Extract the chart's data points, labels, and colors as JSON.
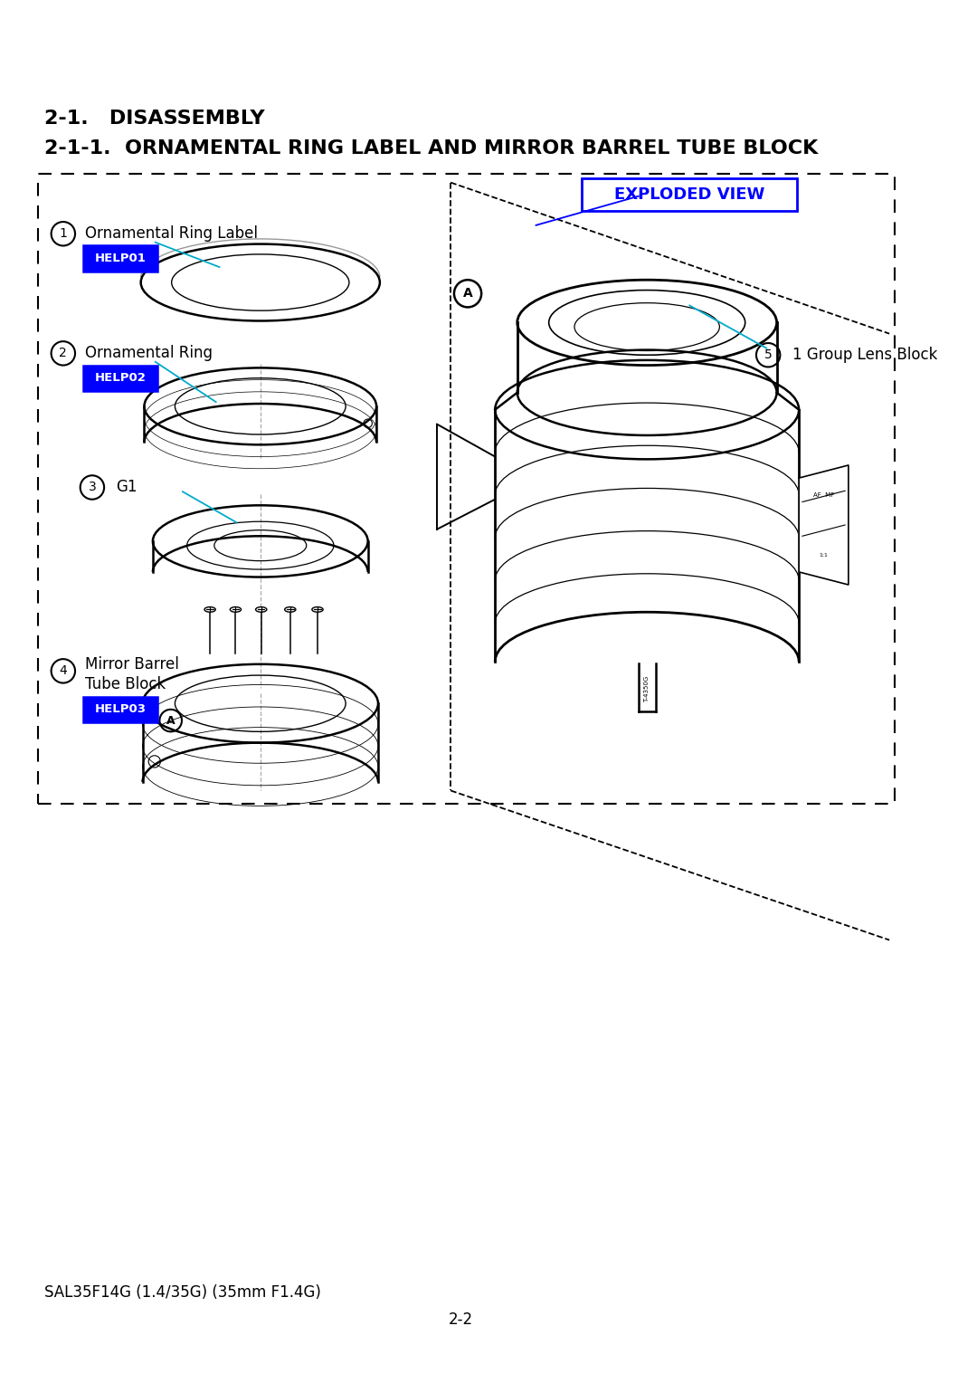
{
  "title1": "2-1.   DISASSEMBLY",
  "title2": "2-1-1.  ORNAMENTAL RING LABEL AND MIRROR BARREL TUBE BLOCK",
  "exploded_view_label": "EXPLODED VIEW",
  "parts": [
    {
      "num": "1",
      "name": "Ornamental Ring Label",
      "help": "HELP01"
    },
    {
      "num": "2",
      "name": "Ornamental Ring",
      "help": "HELP02"
    },
    {
      "num": "3",
      "name": "G1",
      "help": null
    },
    {
      "num": "4",
      "name": "Mirror Barrel\nTube Block",
      "help": "HELP03"
    },
    {
      "num": "5",
      "name": "1 Group Lens Block",
      "help": null
    }
  ],
  "footer_left": "SAL35F14G (1.4/35G) (35mm F1.4G)",
  "footer_center": "2-2",
  "bg_color": "#ffffff",
  "text_color": "#000000",
  "blue_color": "#0000ff",
  "help_bg": "#0000ff",
  "help_text": "#ffffff"
}
